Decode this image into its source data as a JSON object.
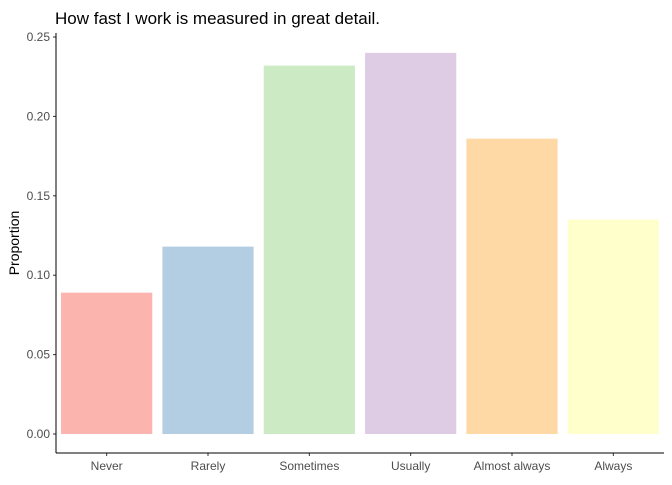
{
  "chart_data": {
    "type": "bar",
    "title": "How fast I work is measured in great detail.",
    "xlabel": "",
    "ylabel": "Proportion",
    "categories": [
      "Never",
      "Rarely",
      "Sometimes",
      "Usually",
      "Almost always",
      "Always"
    ],
    "values": [
      0.089,
      0.118,
      0.232,
      0.24,
      0.186,
      0.135
    ],
    "colors": [
      "#FBB4AE",
      "#B3CDE3",
      "#CCEBC5",
      "#DECBE4",
      "#FED9A6",
      "#FFFFCC"
    ],
    "yticks": [
      "0.00",
      "0.05",
      "0.10",
      "0.15",
      "0.20",
      "0.25"
    ],
    "ylim": [
      0,
      0.25
    ],
    "grid": false,
    "legend": "none"
  }
}
